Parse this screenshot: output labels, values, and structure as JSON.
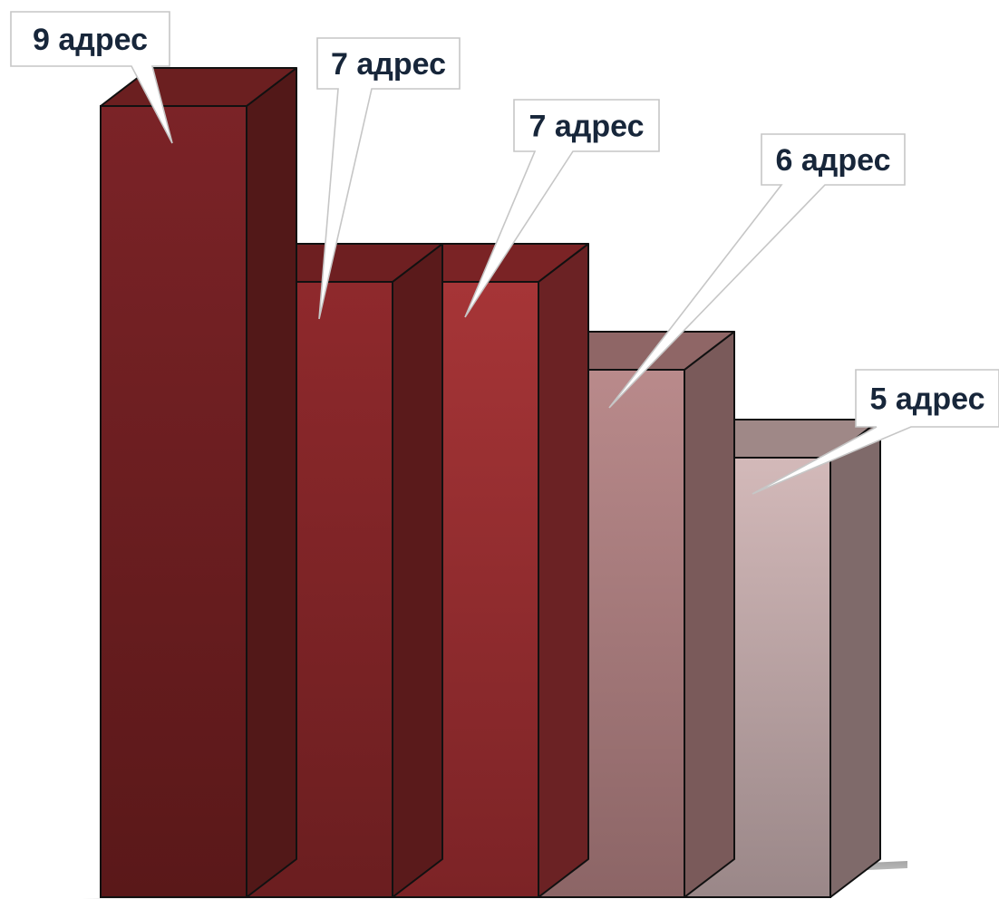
{
  "chart_data": {
    "type": "bar",
    "style": "3d-column",
    "categories": [
      "",
      "",
      "",
      "",
      ""
    ],
    "values": [
      9,
      7,
      7,
      6,
      5
    ],
    "data_labels": [
      "9 адрес",
      "7 адрес",
      "7 адрес",
      "6 адрес",
      "5 адрес"
    ],
    "unit": "адрес",
    "ylim": [
      0,
      9
    ],
    "grid": false,
    "legend": "none",
    "title": "",
    "xlabel": "",
    "ylabel": "",
    "colors": {
      "front": [
        [
          "#7b2327",
          "#5a1819"
        ],
        [
          "#8f292c",
          "#6b1e20"
        ],
        [
          "#a63537",
          "#7c2326"
        ],
        [
          "#b98a8b",
          "#8c6566"
        ],
        [
          "#d3b9b9",
          "#9a8788"
        ]
      ],
      "top": [
        "#6b1f20",
        "#6e1f21",
        "#7a2325",
        "#8f6666",
        "#9f8887"
      ],
      "side": [
        "#521818",
        "#5a1a1b",
        "#6b2224",
        "#7a5a5a",
        "#7f6a6a"
      ],
      "outline": "#111111",
      "callout_border": "#c6c6c6",
      "callout_text": "#17263a"
    }
  }
}
